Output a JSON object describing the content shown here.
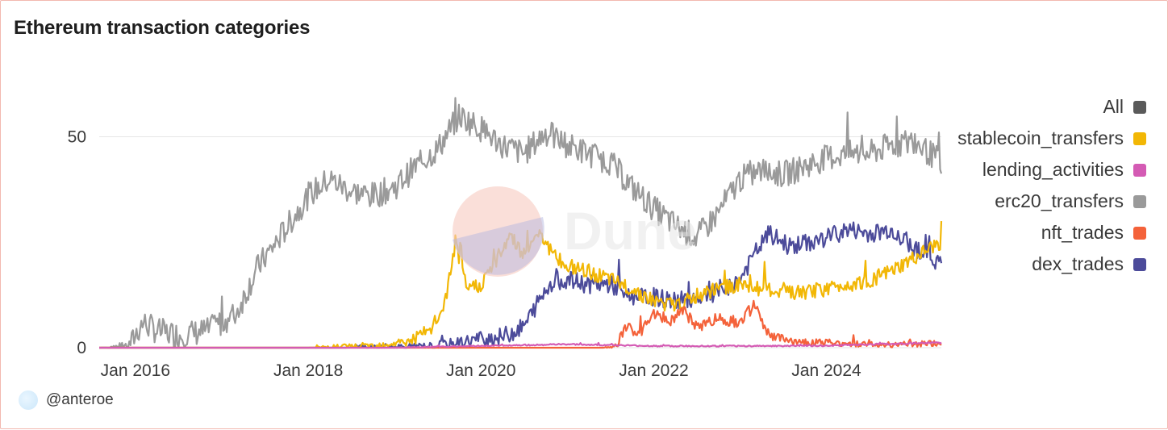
{
  "title": "Ethereum transaction categories",
  "watermark_text": "Dune",
  "footer": {
    "handle": "@anteroe",
    "avatar_icon": "user-avatar-icon"
  },
  "legend": [
    {
      "label": "All",
      "color": "#5a5a5a"
    },
    {
      "label": "stablecoin_transfers",
      "color": "#f2b705"
    },
    {
      "label": "lending_activities",
      "color": "#d45bb4"
    },
    {
      "label": "erc20_transfers",
      "color": "#9a9a9a"
    },
    {
      "label": "nft_trades",
      "color": "#f4623a"
    },
    {
      "label": "dex_trades",
      "color": "#4c4b9a"
    }
  ],
  "chart_data": {
    "type": "line",
    "title": "Ethereum transaction categories",
    "xlabel": "",
    "ylabel": "",
    "x_ticks": [
      "Jan 2016",
      "Jan 2018",
      "Jan 2020",
      "Jan 2022",
      "Jan 2024"
    ],
    "y_ticks": [
      0,
      50
    ],
    "ylim": [
      0,
      65
    ],
    "xlim": [
      "2015-08-01",
      "2025-05-01"
    ],
    "grid": true,
    "legend_position": "right",
    "series": [
      {
        "name": "erc20_transfers",
        "color": "#9a9a9a",
        "noise": 3.2,
        "points": [
          [
            "2015-08-01",
            0
          ],
          [
            "2015-12-01",
            0.2
          ],
          [
            "2016-02-01",
            6
          ],
          [
            "2016-04-01",
            4
          ],
          [
            "2016-07-01",
            3
          ],
          [
            "2016-11-01",
            4
          ],
          [
            "2017-03-01",
            8
          ],
          [
            "2017-06-01",
            19
          ],
          [
            "2017-09-01",
            26
          ],
          [
            "2018-01-01",
            36
          ],
          [
            "2018-04-01",
            40
          ],
          [
            "2018-07-01",
            37
          ],
          [
            "2018-10-01",
            36
          ],
          [
            "2019-01-01",
            38
          ],
          [
            "2019-04-01",
            43
          ],
          [
            "2019-07-01",
            47
          ],
          [
            "2019-10-01",
            55
          ],
          [
            "2020-01-01",
            52
          ],
          [
            "2020-04-01",
            48
          ],
          [
            "2020-07-01",
            46
          ],
          [
            "2020-10-01",
            51
          ],
          [
            "2021-01-01",
            48
          ],
          [
            "2021-04-01",
            46
          ],
          [
            "2021-07-01",
            44
          ],
          [
            "2021-10-01",
            38
          ],
          [
            "2022-01-01",
            33
          ],
          [
            "2022-04-01",
            29
          ],
          [
            "2022-07-01",
            26
          ],
          [
            "2022-10-01",
            32
          ],
          [
            "2023-01-01",
            40
          ],
          [
            "2023-04-01",
            42
          ],
          [
            "2023-07-01",
            41
          ],
          [
            "2023-10-01",
            43
          ],
          [
            "2024-01-01",
            45
          ],
          [
            "2024-04-01",
            46
          ],
          [
            "2024-07-01",
            46
          ],
          [
            "2024-10-01",
            48
          ],
          [
            "2025-01-01",
            49
          ],
          [
            "2025-05-01",
            44
          ]
        ]
      },
      {
        "name": "dex_trades",
        "color": "#4c4b9a",
        "noise": 2.2,
        "points": [
          [
            "2015-08-01",
            0
          ],
          [
            "2018-06-01",
            0
          ],
          [
            "2019-06-01",
            0.4
          ],
          [
            "2019-10-01",
            1.2
          ],
          [
            "2020-01-01",
            2.2
          ],
          [
            "2020-04-01",
            2.6
          ],
          [
            "2020-07-01",
            5
          ],
          [
            "2020-09-01",
            11
          ],
          [
            "2020-11-01",
            16
          ],
          [
            "2021-01-01",
            16
          ],
          [
            "2021-04-01",
            15
          ],
          [
            "2021-07-01",
            15
          ],
          [
            "2021-10-01",
            12
          ],
          [
            "2022-01-01",
            12
          ],
          [
            "2022-04-01",
            11
          ],
          [
            "2022-07-01",
            12
          ],
          [
            "2022-10-01",
            13
          ],
          [
            "2023-01-01",
            16
          ],
          [
            "2023-03-01",
            22
          ],
          [
            "2023-05-01",
            27
          ],
          [
            "2023-08-01",
            24
          ],
          [
            "2023-11-01",
            25
          ],
          [
            "2024-01-01",
            26
          ],
          [
            "2024-04-01",
            28
          ],
          [
            "2024-07-01",
            27
          ],
          [
            "2024-10-01",
            28
          ],
          [
            "2025-01-01",
            24
          ],
          [
            "2025-05-01",
            20
          ]
        ]
      },
      {
        "name": "stablecoin_transfers",
        "color": "#f2b705",
        "noise": 1.8,
        "points": [
          [
            "2015-08-01",
            0
          ],
          [
            "2018-01-01",
            0
          ],
          [
            "2018-10-01",
            0.5
          ],
          [
            "2019-03-01",
            1.5
          ],
          [
            "2019-06-01",
            4
          ],
          [
            "2019-08-01",
            10
          ],
          [
            "2019-09-15",
            25
          ],
          [
            "2019-11-01",
            14
          ],
          [
            "2020-01-01",
            15
          ],
          [
            "2020-03-01",
            20
          ],
          [
            "2020-05-01",
            27
          ],
          [
            "2020-07-01",
            22
          ],
          [
            "2020-09-01",
            28
          ],
          [
            "2020-11-01",
            22
          ],
          [
            "2021-01-01",
            19
          ],
          [
            "2021-04-01",
            18
          ],
          [
            "2021-07-01",
            16
          ],
          [
            "2021-10-01",
            14
          ],
          [
            "2022-01-01",
            11
          ],
          [
            "2022-04-01",
            10
          ],
          [
            "2022-07-01",
            12
          ],
          [
            "2022-10-01",
            14
          ],
          [
            "2023-01-01",
            15
          ],
          [
            "2023-04-01",
            14
          ],
          [
            "2023-07-01",
            13
          ],
          [
            "2023-10-01",
            13
          ],
          [
            "2024-01-01",
            14
          ],
          [
            "2024-04-01",
            15
          ],
          [
            "2024-07-01",
            16
          ],
          [
            "2024-10-01",
            18
          ],
          [
            "2025-01-01",
            21
          ],
          [
            "2025-05-01",
            25
          ]
        ]
      },
      {
        "name": "nft_trades",
        "color": "#f4623a",
        "noise": 1.4,
        "points": [
          [
            "2015-08-01",
            0
          ],
          [
            "2021-06-01",
            0
          ],
          [
            "2021-08-01",
            0.5
          ],
          [
            "2021-09-01",
            5
          ],
          [
            "2021-11-01",
            3
          ],
          [
            "2022-01-01",
            8
          ],
          [
            "2022-03-01",
            6
          ],
          [
            "2022-05-01",
            9
          ],
          [
            "2022-07-01",
            5
          ],
          [
            "2022-10-01",
            7
          ],
          [
            "2023-01-01",
            6
          ],
          [
            "2023-03-01",
            10
          ],
          [
            "2023-05-01",
            3
          ],
          [
            "2023-08-01",
            1.5
          ],
          [
            "2024-01-01",
            1.2
          ],
          [
            "2024-06-01",
            0.8
          ],
          [
            "2025-01-01",
            0.8
          ],
          [
            "2025-05-01",
            1
          ]
        ]
      },
      {
        "name": "lending_activities",
        "color": "#d45bb4",
        "noise": 0.35,
        "points": [
          [
            "2015-08-01",
            0
          ],
          [
            "2019-01-01",
            0
          ],
          [
            "2019-06-01",
            0.2
          ],
          [
            "2020-06-01",
            0.6
          ],
          [
            "2021-01-01",
            0.8
          ],
          [
            "2022-01-01",
            0.4
          ],
          [
            "2023-01-01",
            0.4
          ],
          [
            "2024-01-01",
            0.5
          ],
          [
            "2025-05-01",
            1.2
          ]
        ]
      }
    ]
  }
}
